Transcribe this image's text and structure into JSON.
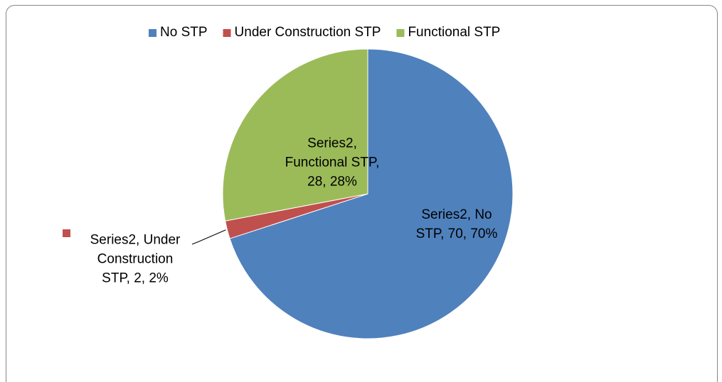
{
  "chart_data": {
    "type": "pie",
    "categories": [
      "No STP",
      "Under Construction STP",
      "Functional STP"
    ],
    "values": [
      70,
      2,
      28
    ],
    "value_labels": [
      "Series2, No STP, 70, 70%",
      "Series2, Under Construction STP, 2, 2%",
      "Series2, Functional STP, 28, 28%"
    ],
    "colors": [
      "#4f81bd",
      "#c0504d",
      "#9bbb59"
    ],
    "legend": "top"
  }
}
